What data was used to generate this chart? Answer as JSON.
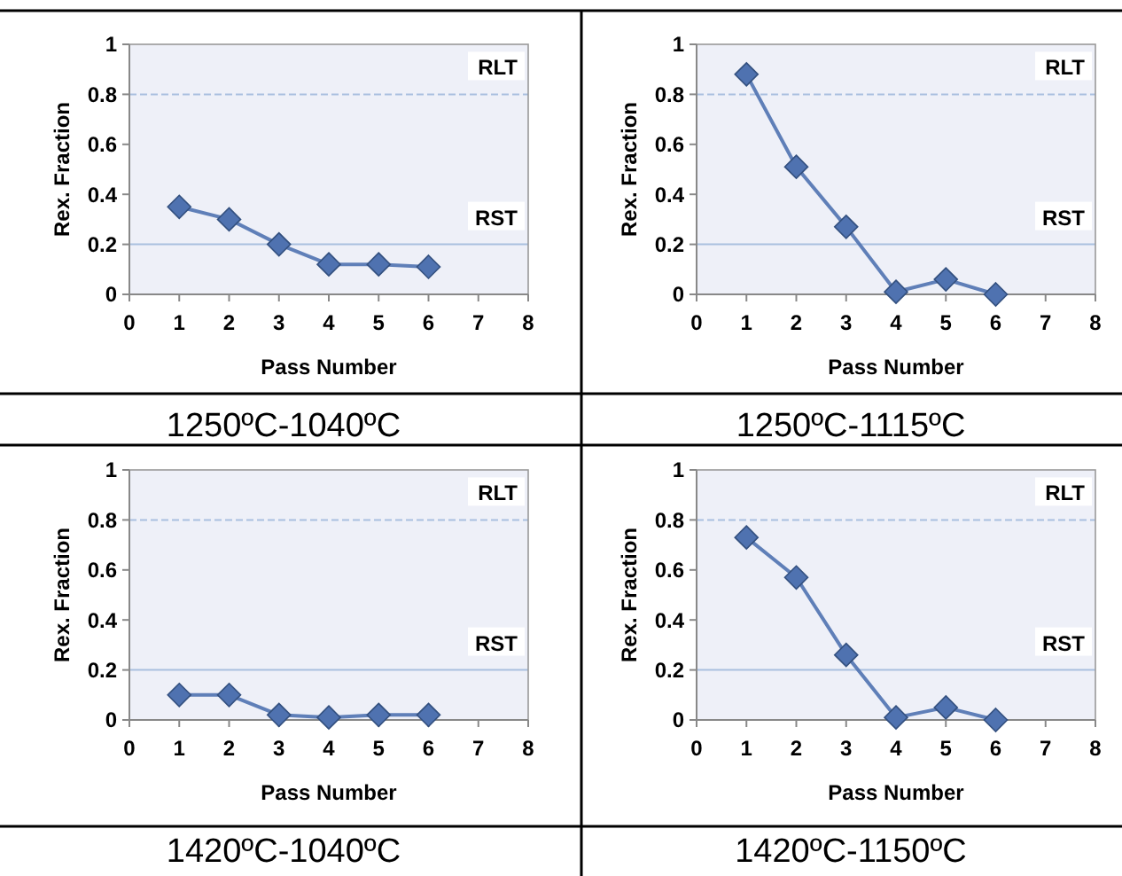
{
  "chart_data": [
    {
      "type": "line",
      "title": "1250ºC-1040ºC",
      "xlabel": "Pass Number",
      "ylabel": "Rex. Fraction",
      "x": [
        1,
        2,
        3,
        4,
        5,
        6
      ],
      "series": [
        {
          "color": "#4f72b0",
          "values": [
            0.35,
            0.3,
            0.2,
            0.12,
            0.12,
            0.11
          ]
        }
      ],
      "xlim": [
        0,
        8
      ],
      "xticks": [
        0,
        1,
        2,
        3,
        4,
        5,
        6,
        7,
        8
      ],
      "ylim": [
        0,
        1
      ],
      "yticks": [
        0,
        0.2,
        0.4,
        0.6,
        0.8,
        1
      ],
      "marker": "diamond",
      "line_style": "solid",
      "grid": false,
      "ref_lines": [
        {
          "axis": "y",
          "value": 0.8,
          "label": "RLT",
          "color": "#a9bfdf",
          "line_style": "dashed"
        },
        {
          "axis": "y",
          "value": 0.2,
          "label": "RST",
          "color": "#a9bfdf",
          "line_style": "solid"
        }
      ]
    },
    {
      "type": "line",
      "title": "1250ºC-1115ºC",
      "xlabel": "Pass Number",
      "ylabel": "Rex. Fraction",
      "x": [
        1,
        2,
        3,
        4,
        5,
        6
      ],
      "series": [
        {
          "color": "#4f72b0",
          "values": [
            0.88,
            0.51,
            0.27,
            0.01,
            0.06,
            0
          ]
        }
      ],
      "xlim": [
        0,
        8
      ],
      "xticks": [
        0,
        1,
        2,
        3,
        4,
        5,
        6,
        7,
        8
      ],
      "ylim": [
        0,
        1
      ],
      "yticks": [
        0,
        0.2,
        0.4,
        0.6,
        0.8,
        1
      ],
      "marker": "diamond",
      "line_style": "solid",
      "grid": false,
      "ref_lines": [
        {
          "axis": "y",
          "value": 0.8,
          "label": "RLT",
          "color": "#a9bfdf",
          "line_style": "dashed"
        },
        {
          "axis": "y",
          "value": 0.2,
          "label": "RST",
          "color": "#a9bfdf",
          "line_style": "solid"
        }
      ]
    },
    {
      "type": "line",
      "title": "1420ºC-1040ºC",
      "xlabel": "Pass Number",
      "ylabel": "Rex. Fraction",
      "x": [
        1,
        2,
        3,
        4,
        5,
        6
      ],
      "series": [
        {
          "color": "#4f72b0",
          "values": [
            0.1,
            0.1,
            0.02,
            0.01,
            0.02,
            0.02
          ]
        }
      ],
      "xlim": [
        0,
        8
      ],
      "xticks": [
        0,
        1,
        2,
        3,
        4,
        5,
        6,
        7,
        8
      ],
      "ylim": [
        0,
        1
      ],
      "yticks": [
        0,
        0.2,
        0.4,
        0.6,
        0.8,
        1
      ],
      "marker": "diamond",
      "line_style": "solid",
      "grid": false,
      "ref_lines": [
        {
          "axis": "y",
          "value": 0.8,
          "label": "RLT",
          "color": "#a9bfdf",
          "line_style": "dashed"
        },
        {
          "axis": "y",
          "value": 0.2,
          "label": "RST",
          "color": "#a9bfdf",
          "line_style": "solid"
        }
      ]
    },
    {
      "type": "line",
      "title": "1420ºC-1150ºC",
      "xlabel": "Pass Number",
      "ylabel": "Rex. Fraction",
      "x": [
        1,
        2,
        3,
        4,
        5,
        6
      ],
      "series": [
        {
          "color": "#4f72b0",
          "values": [
            0.73,
            0.57,
            0.26,
            0.01,
            0.05,
            0
          ]
        }
      ],
      "xlim": [
        0,
        8
      ],
      "xticks": [
        0,
        1,
        2,
        3,
        4,
        5,
        6,
        7,
        8
      ],
      "ylim": [
        0,
        1
      ],
      "yticks": [
        0,
        0.2,
        0.4,
        0.6,
        0.8,
        1
      ],
      "marker": "diamond",
      "line_style": "solid",
      "grid": false,
      "ref_lines": [
        {
          "axis": "y",
          "value": 0.8,
          "label": "RLT",
          "color": "#a9bfdf",
          "line_style": "dashed"
        },
        {
          "axis": "y",
          "value": 0.2,
          "label": "RST",
          "color": "#a9bfdf",
          "line_style": "solid"
        }
      ]
    }
  ]
}
